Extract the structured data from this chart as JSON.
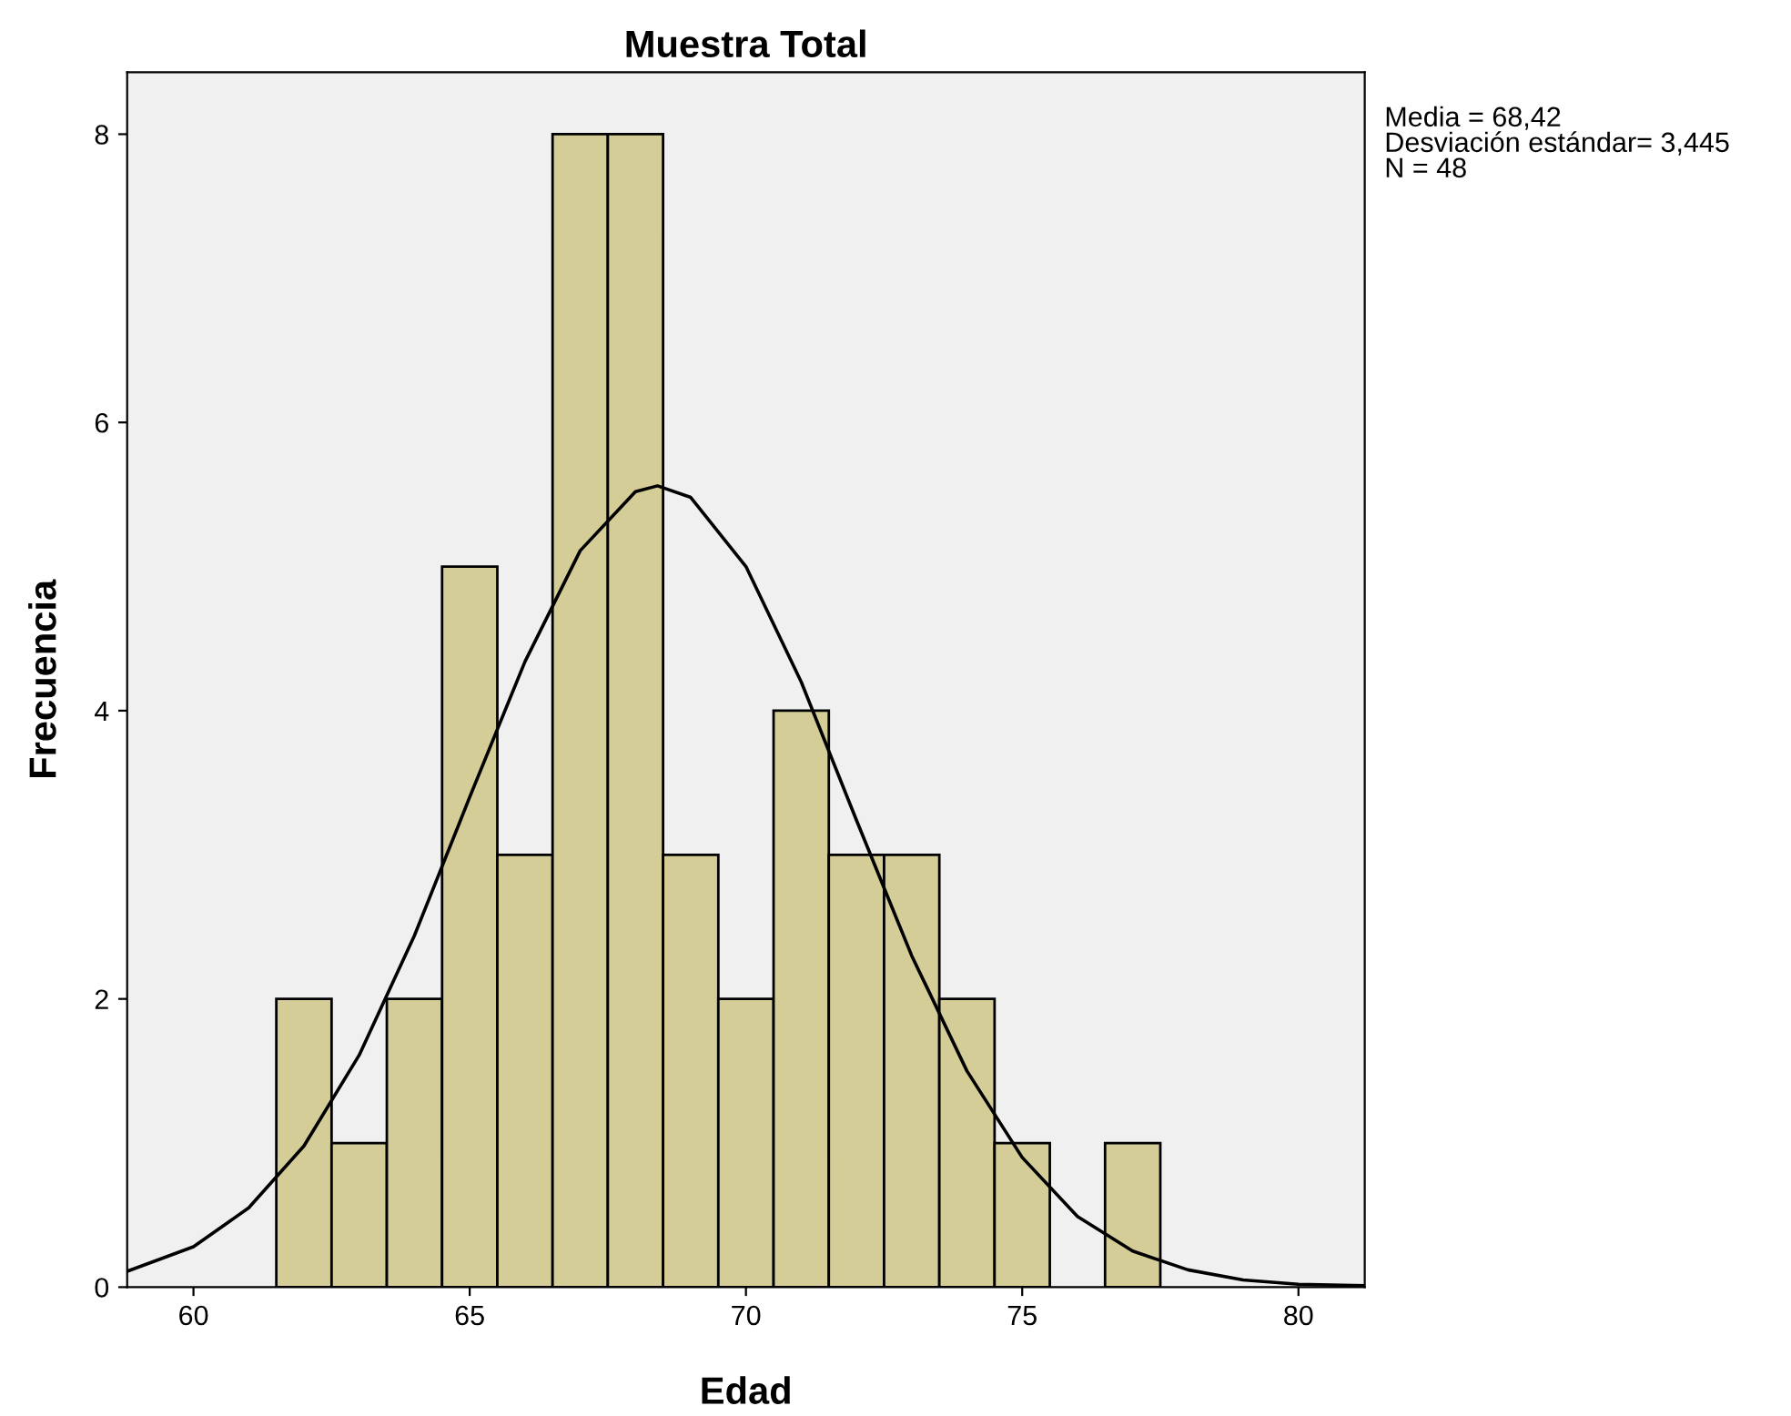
{
  "chart_data": {
    "type": "histogram",
    "title": "Muestra Total",
    "xlabel": "Edad",
    "ylabel": "Frecuencia",
    "series": [
      {
        "color": "#d4cd98",
        "bins": [
          61.5,
          62.5,
          63.5,
          64.5,
          65.5,
          66.5,
          67.5,
          68.5,
          69.5,
          70.5,
          71.5,
          72.5,
          73.5,
          74.5,
          75.5,
          76.5,
          77.5
        ],
        "values": [
          2,
          1,
          2,
          5,
          3,
          8,
          8,
          3,
          2,
          4,
          3,
          3,
          2,
          1,
          0,
          1
        ]
      },
      {
        "type": "line",
        "color": "#000000",
        "x": [
          58.8,
          60,
          61,
          62,
          63,
          64,
          65,
          66,
          67,
          68,
          68.4,
          69,
          70,
          71,
          72,
          73,
          74,
          75,
          76,
          77,
          78,
          79,
          80,
          81.2
        ],
        "values": [
          0.11,
          0.28,
          0.55,
          0.98,
          1.61,
          2.44,
          3.4,
          4.34,
          5.11,
          5.52,
          5.56,
          5.48,
          5.0,
          4.2,
          3.24,
          2.3,
          1.5,
          0.9,
          0.49,
          0.25,
          0.12,
          0.05,
          0.02,
          0.01
        ]
      }
    ],
    "annotations": [
      "Media = 68,42",
      "Desviación estándar= 3,445",
      "N = 48"
    ],
    "xlim": [
      58.8,
      81.2
    ],
    "ylim": [
      0,
      8.43
    ],
    "xticks": [
      60,
      65,
      70,
      75,
      80
    ],
    "yticks": [
      0,
      2,
      4,
      6,
      8
    ],
    "grid": false,
    "legend": false
  }
}
